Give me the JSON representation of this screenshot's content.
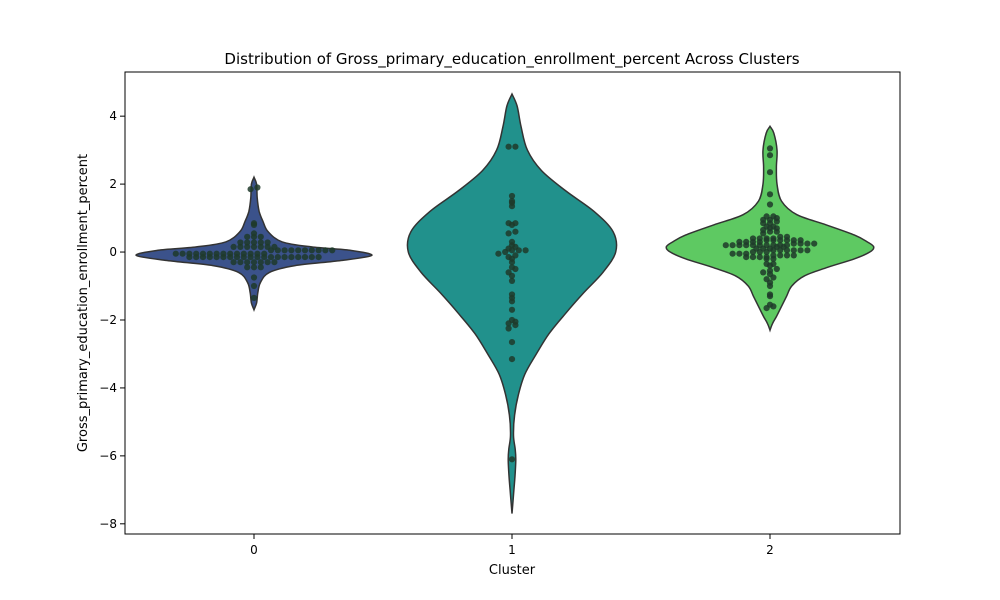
{
  "chart_data": {
    "type": "violin",
    "title": "Distribution of Gross_primary_education_enrollment_percent Across Clusters",
    "xlabel": "Cluster",
    "ylabel": "Gross_primary_education_enrollment_percent",
    "categories": [
      "0",
      "1",
      "2"
    ],
    "ylim": [
      -8.3,
      5.3
    ],
    "yticks": [
      -8,
      -6,
      -4,
      -2,
      0,
      2,
      4
    ],
    "ytick_labels": [
      "−8",
      "−6",
      "−4",
      "−2",
      "0",
      "2",
      "4"
    ],
    "grid": false,
    "legend": "none",
    "colors": {
      "violins": [
        "#3b528b",
        "#21918c",
        "#5ec962"
      ],
      "outline": "#333333",
      "points": "#1f3a2a"
    },
    "violins": [
      {
        "category": "0",
        "color": "#3b528b",
        "profile": [
          [
            2.2,
            0.0
          ],
          [
            2.0,
            0.02
          ],
          [
            1.6,
            0.025
          ],
          [
            1.2,
            0.04
          ],
          [
            0.9,
            0.07
          ],
          [
            0.6,
            0.11
          ],
          [
            0.3,
            0.22
          ],
          [
            0.15,
            0.45
          ],
          [
            0.05,
            0.75
          ],
          [
            -0.1,
            0.92
          ],
          [
            -0.25,
            0.68
          ],
          [
            -0.4,
            0.32
          ],
          [
            -0.6,
            0.12
          ],
          [
            -0.9,
            0.05
          ],
          [
            -1.2,
            0.03
          ],
          [
            -1.5,
            0.02
          ],
          [
            -1.7,
            0.0
          ]
        ],
        "points": [
          -0.15,
          -0.15,
          -0.15,
          -0.15,
          -0.15,
          -0.15,
          -0.15,
          -0.15,
          -0.15,
          -0.15,
          -0.15,
          -0.15,
          -0.15,
          -0.15,
          -0.15,
          -0.15,
          -0.15,
          -0.15,
          -0.15,
          -0.15,
          -0.05,
          -0.05,
          -0.05,
          -0.05,
          -0.05,
          -0.05,
          -0.05,
          -0.05,
          -0.05,
          -0.05,
          -0.05,
          -0.05,
          -0.05,
          -0.05,
          0.05,
          0.05,
          0.05,
          0.05,
          0.05,
          0.05,
          0.05,
          0.05,
          0.05,
          0.05,
          0.15,
          0.15,
          0.15,
          0.15,
          0.15,
          0.15,
          0.15,
          0.28,
          0.28,
          0.28,
          0.28,
          0.28,
          0.45,
          0.45,
          0.45,
          0.55,
          0.8,
          0.85,
          -0.3,
          -0.3,
          -0.3,
          -0.3,
          -0.3,
          -0.3,
          -0.3,
          -0.45,
          -0.45,
          -0.45,
          -0.75,
          -1.0,
          -1.35,
          1.85,
          1.9
        ]
      },
      {
        "category": "1",
        "color": "#21918c",
        "profile": [
          [
            4.65,
            0.0
          ],
          [
            4.3,
            0.04
          ],
          [
            3.7,
            0.07
          ],
          [
            3.0,
            0.12
          ],
          [
            2.4,
            0.23
          ],
          [
            1.8,
            0.42
          ],
          [
            1.2,
            0.64
          ],
          [
            0.6,
            0.79
          ],
          [
            0.0,
            0.81
          ],
          [
            -0.6,
            0.71
          ],
          [
            -1.2,
            0.56
          ],
          [
            -1.8,
            0.42
          ],
          [
            -2.4,
            0.29
          ],
          [
            -3.0,
            0.19
          ],
          [
            -3.6,
            0.1
          ],
          [
            -4.2,
            0.05
          ],
          [
            -4.8,
            0.02
          ],
          [
            -5.4,
            0.012
          ],
          [
            -5.8,
            0.025
          ],
          [
            -6.1,
            0.03
          ],
          [
            -6.5,
            0.025
          ],
          [
            -7.0,
            0.015
          ],
          [
            -7.7,
            0.0
          ]
        ],
        "points": [
          3.1,
          3.1,
          1.65,
          1.5,
          1.45,
          1.35,
          0.85,
          0.85,
          0.8,
          0.6,
          0.55,
          0.3,
          0.2,
          0.15,
          0.1,
          0.05,
          0.05,
          0.05,
          0.0,
          -0.05,
          -0.1,
          -0.15,
          -0.2,
          -0.3,
          -0.45,
          -0.5,
          -0.6,
          -0.7,
          -0.85,
          -1.25,
          -1.35,
          -1.45,
          -1.7,
          -2.0,
          -2.05,
          -2.1,
          -2.15,
          -2.25,
          -2.65,
          -3.15,
          -6.1
        ]
      },
      {
        "category": "2",
        "color": "#5ec962",
        "profile": [
          [
            3.7,
            0.0
          ],
          [
            3.5,
            0.03
          ],
          [
            3.0,
            0.055
          ],
          [
            2.5,
            0.05
          ],
          [
            2.0,
            0.055
          ],
          [
            1.5,
            0.09
          ],
          [
            1.1,
            0.21
          ],
          [
            0.8,
            0.44
          ],
          [
            0.5,
            0.66
          ],
          [
            0.3,
            0.76
          ],
          [
            0.15,
            0.81
          ],
          [
            0.0,
            0.78
          ],
          [
            -0.2,
            0.66
          ],
          [
            -0.45,
            0.45
          ],
          [
            -0.7,
            0.27
          ],
          [
            -1.0,
            0.17
          ],
          [
            -1.3,
            0.13
          ],
          [
            -1.6,
            0.09
          ],
          [
            -1.9,
            0.05
          ],
          [
            -2.1,
            0.02
          ],
          [
            -2.3,
            0.0
          ]
        ],
        "points": [
          3.05,
          2.85,
          2.35,
          1.7,
          1.4,
          1.05,
          1.05,
          1.0,
          0.95,
          0.95,
          0.9,
          0.85,
          0.85,
          0.75,
          0.75,
          0.7,
          0.7,
          0.65,
          0.6,
          0.6,
          0.55,
          0.45,
          0.45,
          0.4,
          0.4,
          0.4,
          0.4,
          0.35,
          0.35,
          0.35,
          0.35,
          0.35,
          0.35,
          0.3,
          0.3,
          0.3,
          0.3,
          0.25,
          0.25,
          0.25,
          0.25,
          0.2,
          0.2,
          0.2,
          0.2,
          0.2,
          0.2,
          0.2,
          0.2,
          0.2,
          0.2,
          0.15,
          0.15,
          0.1,
          0.1,
          0.1,
          0.05,
          0.05,
          0.05,
          0.05,
          0.05,
          0.05,
          0.0,
          0.0,
          0.0,
          -0.05,
          -0.05,
          -0.05,
          -0.1,
          -0.1,
          -0.1,
          -0.1,
          -0.15,
          -0.15,
          -0.15,
          -0.15,
          -0.2,
          -0.2,
          -0.35,
          -0.35,
          -0.4,
          -0.5,
          -0.55,
          -0.6,
          -0.65,
          -0.75,
          -0.8,
          -0.9,
          -1.0,
          -1.25,
          -1.3,
          -1.55,
          -1.6,
          -1.65
        ]
      }
    ]
  }
}
